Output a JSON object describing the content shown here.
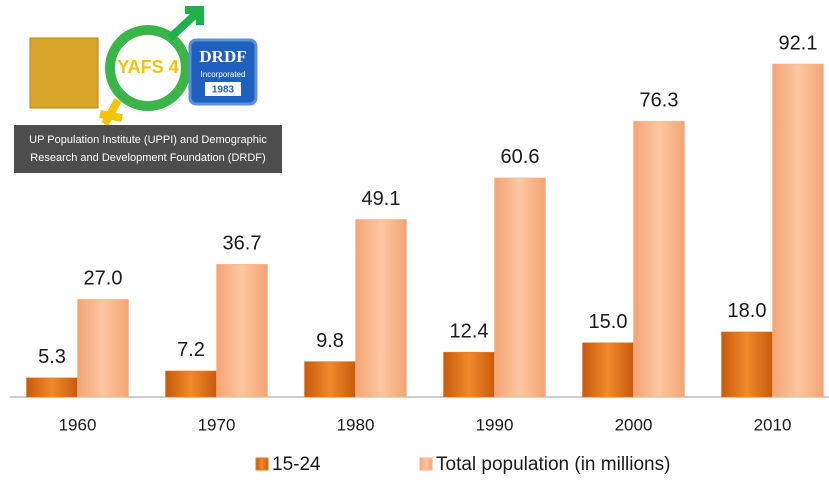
{
  "chart_data": {
    "type": "bar",
    "categories": [
      "1960",
      "1970",
      "1980",
      "1990",
      "2000",
      "2010"
    ],
    "series": [
      {
        "name": "15-24",
        "color": "#e8761e",
        "values": [
          5.3,
          7.2,
          9.8,
          12.4,
          15.0,
          18.0
        ],
        "value_labels": [
          "5.3",
          "7.2",
          "9.8",
          "12.4",
          "15.0",
          "18.0"
        ]
      },
      {
        "name": "Total population (in millions)",
        "color": "#f8b58a",
        "values": [
          27.0,
          36.7,
          49.1,
          60.6,
          76.3,
          92.1
        ],
        "value_labels": [
          "27.0",
          "36.7",
          "49.1",
          "60.6",
          "76.3",
          "92.1"
        ]
      }
    ],
    "legend": "bottom"
  },
  "logos": {
    "yafs": "YAFS 4",
    "drdf": "DRDF",
    "drdf_sub": "Incorporated",
    "drdf_year": "1983",
    "caption": [
      "UP Population Institute (UPPI) and Demographic",
      "Research and Development Foundation (DRDF)"
    ]
  }
}
